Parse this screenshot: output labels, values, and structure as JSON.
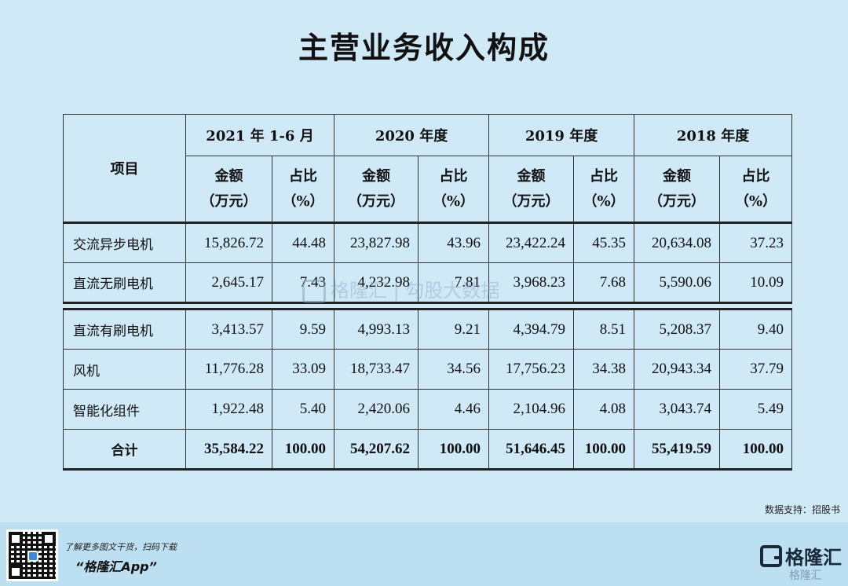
{
  "title": "主营业务收入构成",
  "table": {
    "item_header": "项目",
    "periods": [
      "2021 年 1-6 月",
      "2020 年度",
      "2019 年度",
      "2018 年度"
    ],
    "amount_header_line1": "金额",
    "amount_header_line2": "（万元）",
    "ratio_header_line1": "占比",
    "ratio_header_line2": "（%）",
    "rows": [
      {
        "label": "交流异步电机",
        "v": [
          "15,826.72",
          "44.48",
          "23,827.98",
          "43.96",
          "23,422.24",
          "45.35",
          "20,634.08",
          "37.23"
        ]
      },
      {
        "label": "直流无刷电机",
        "v": [
          "2,645.17",
          "7.43",
          "4,232.98",
          "7.81",
          "3,968.23",
          "7.68",
          "5,590.06",
          "10.09"
        ]
      },
      {
        "label": "直流有刷电机",
        "v": [
          "3,413.57",
          "9.59",
          "4,993.13",
          "9.21",
          "4,394.79",
          "8.51",
          "5,208.37",
          "9.40"
        ]
      },
      {
        "label": "风机",
        "v": [
          "11,776.28",
          "33.09",
          "18,733.47",
          "34.56",
          "17,756.23",
          "34.38",
          "20,943.34",
          "37.79"
        ]
      },
      {
        "label": "智能化组件",
        "v": [
          "1,922.48",
          "5.40",
          "2,420.06",
          "4.46",
          "2,104.96",
          "4.08",
          "3,043.74",
          "5.49"
        ]
      }
    ],
    "total": {
      "label": "合计",
      "v": [
        "35,584.22",
        "100.00",
        "54,207.62",
        "100.00",
        "51,646.45",
        "100.00",
        "55,419.59",
        "100.00"
      ]
    }
  },
  "watermark": "格隆汇 | 勾股大数据",
  "source": "数据支持：招股书",
  "footer": {
    "promo": "了解更多图文干货，扫码下载",
    "app_name": "“格隆汇App”",
    "brand": "格隆汇",
    "corner_watermark": "格隆汇"
  },
  "colors": {
    "background": "#cfe9f7",
    "footer": "#bcdff1",
    "border": "#222222"
  }
}
